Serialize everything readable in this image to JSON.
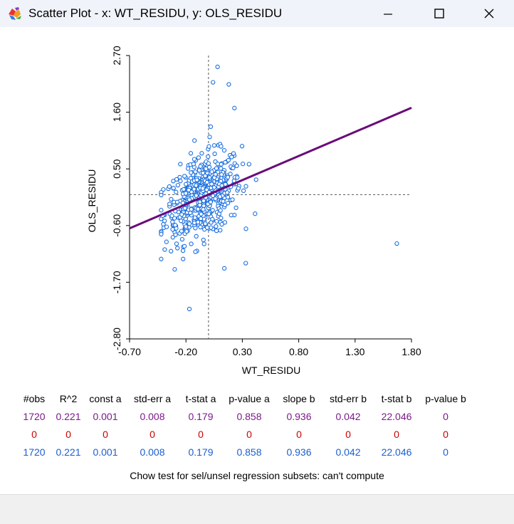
{
  "window": {
    "title": "Scatter Plot - x: WT_RESIDU, y: OLS_RESIDU",
    "icon": "geoda-app-icon",
    "controls": [
      "minimize",
      "maximize",
      "close"
    ]
  },
  "chart_data": {
    "type": "scatter",
    "xlabel": "WT_RESIDU",
    "ylabel": "OLS_RESIDU",
    "x_ticks": [
      "-0.70",
      "-0.20",
      "0.30",
      "0.80",
      "1.30",
      "1.80"
    ],
    "y_ticks": [
      "2.70",
      "1.60",
      "0.50",
      "-0.60",
      "-1.70",
      "-2.80"
    ],
    "xlim": [
      -0.7,
      1.8
    ],
    "ylim": [
      -2.8,
      2.7
    ],
    "mean_x": 0.0,
    "mean_y": 0.0,
    "regression_line": {
      "slope": 0.936,
      "intercept": 0.001
    },
    "point_color": "#1a6fe0",
    "line_color": "#6a0a7a",
    "n_points": 1720,
    "outliers": [
      {
        "x": 0.08,
        "y": 2.48
      },
      {
        "x": 0.04,
        "y": 2.18
      },
      {
        "x": 0.18,
        "y": 2.14
      },
      {
        "x": 0.23,
        "y": 1.68
      },
      {
        "x": 1.67,
        "y": -0.95
      },
      {
        "x": -0.17,
        "y": -2.22
      },
      {
        "x": 0.33,
        "y": -1.33
      },
      {
        "x": 0.14,
        "y": -1.43
      },
      {
        "x": -0.3,
        "y": -1.45
      },
      {
        "x": 0.02,
        "y": 1.32
      },
      {
        "x": 0.01,
        "y": 1.12
      }
    ]
  },
  "stats": {
    "headers": [
      "#obs",
      "R^2",
      "const a",
      "std-err a",
      "t-stat a",
      "p-value a",
      "slope b",
      "std-err b",
      "t-stat b",
      "p-value b"
    ],
    "rows": [
      [
        "1720",
        "0.221",
        "0.001",
        "0.008",
        "0.179",
        "0.858",
        "0.936",
        "0.042",
        "22.046",
        "0"
      ],
      [
        "0",
        "0",
        "0",
        "0",
        "0",
        "0",
        "0",
        "0",
        "0",
        "0"
      ],
      [
        "1720",
        "0.221",
        "0.001",
        "0.008",
        "0.179",
        "0.858",
        "0.936",
        "0.042",
        "22.046",
        "0"
      ]
    ],
    "chow": "Chow test for sel/unsel regression subsets: can't compute"
  }
}
